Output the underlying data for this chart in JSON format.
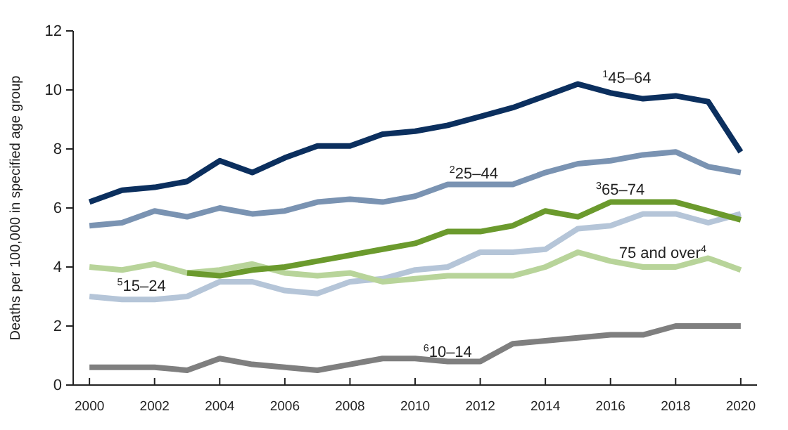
{
  "chart_data": {
    "type": "line",
    "ylabel": "Deaths per 100,000 in specified age group",
    "x": [
      2000,
      2001,
      2002,
      2003,
      2004,
      2005,
      2006,
      2007,
      2008,
      2009,
      2010,
      2011,
      2012,
      2013,
      2014,
      2015,
      2016,
      2017,
      2018,
      2019,
      2020
    ],
    "xlim": [
      1999.5,
      2020.5
    ],
    "xticks": [
      2000,
      2002,
      2004,
      2006,
      2008,
      2010,
      2012,
      2014,
      2016,
      2018,
      2020
    ],
    "ylim": [
      0,
      12
    ],
    "yticks": [
      0,
      2,
      4,
      6,
      8,
      10,
      12
    ],
    "grid": false,
    "legend": false,
    "marker": "none",
    "line_style": "solid",
    "series": [
      {
        "name": "$^{1}$45–64",
        "color": "#0b2f5e",
        "values": [
          6.2,
          6.6,
          6.7,
          6.9,
          7.6,
          7.2,
          7.7,
          8.1,
          8.1,
          8.5,
          8.6,
          8.8,
          9.1,
          9.4,
          9.8,
          10.2,
          9.9,
          9.7,
          9.8,
          9.6,
          7.9
        ]
      },
      {
        "name": "$^{2}$25–44",
        "color": "#7a93b2",
        "values": [
          5.4,
          5.5,
          5.9,
          5.7,
          6.0,
          5.8,
          5.9,
          6.2,
          6.3,
          6.2,
          6.4,
          6.8,
          6.8,
          6.8,
          7.2,
          7.5,
          7.6,
          7.8,
          7.9,
          7.4,
          7.2
        ]
      },
      {
        "name": "$^{3}$65–74",
        "color": "#6b9a2d",
        "values": [
          null,
          null,
          null,
          3.8,
          3.7,
          3.9,
          4.0,
          4.2,
          4.4,
          4.6,
          4.8,
          5.2,
          5.2,
          5.4,
          5.9,
          5.7,
          6.2,
          6.2,
          6.2,
          5.9,
          5.6
        ]
      },
      {
        "name": "75 and over$^{4}$",
        "color": "#b8d49a",
        "values": [
          4.0,
          3.9,
          4.1,
          3.8,
          3.9,
          4.1,
          3.8,
          3.7,
          3.8,
          3.5,
          3.6,
          3.7,
          3.7,
          3.7,
          4.0,
          4.5,
          4.2,
          4.0,
          4.0,
          4.3,
          3.9
        ]
      },
      {
        "name": "$^{5}$15–24",
        "color": "#b5c5d8",
        "values": [
          3.0,
          2.9,
          2.9,
          3.0,
          3.5,
          3.5,
          3.2,
          3.1,
          3.5,
          3.6,
          3.9,
          4.0,
          4.5,
          4.5,
          4.6,
          5.3,
          5.4,
          5.8,
          5.8,
          5.5,
          5.8
        ]
      },
      {
        "name": "$^{6}$10–14",
        "color": "#7f7f7f",
        "values": [
          0.6,
          0.6,
          0.6,
          0.5,
          0.9,
          0.7,
          0.6,
          0.5,
          0.7,
          0.9,
          0.9,
          0.8,
          0.8,
          1.4,
          1.5,
          1.6,
          1.7,
          1.7,
          2.0,
          2.0,
          2.0
        ]
      }
    ]
  }
}
